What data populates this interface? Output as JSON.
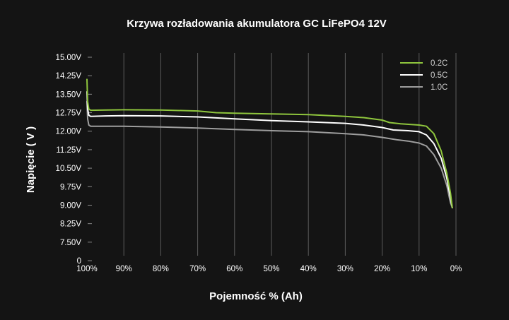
{
  "chart_data": {
    "type": "line",
    "title": "Krzywa rozładowania akumulatora GC LiFePO4 12V",
    "xlabel": "Pojemność % (Ah)",
    "ylabel": "Napięcie ( V )",
    "x_ticks": [
      "100%",
      "90%",
      "80%",
      "70%",
      "60%",
      "50%",
      "40%",
      "30%",
      "20%",
      "10%",
      "0%"
    ],
    "y_ticks": [
      "15.00V",
      "14.25V",
      "13.50V",
      "12.75V",
      "12.00V",
      "11.25V",
      "10.50V",
      "9.75V",
      "9.00V",
      "8.25V",
      "7.50V",
      "0"
    ],
    "x_range": [
      100,
      0
    ],
    "grid": "vertical",
    "legend_position": "top-right",
    "series": [
      {
        "name": "0.2C",
        "color": "#8fc63d",
        "points": [
          [
            100,
            14.1
          ],
          [
            99.8,
            13.2
          ],
          [
            99.5,
            12.9
          ],
          [
            99,
            12.85
          ],
          [
            95,
            12.86
          ],
          [
            90,
            12.87
          ],
          [
            80,
            12.86
          ],
          [
            70,
            12.82
          ],
          [
            65,
            12.75
          ],
          [
            60,
            12.73
          ],
          [
            50,
            12.7
          ],
          [
            40,
            12.67
          ],
          [
            30,
            12.6
          ],
          [
            25,
            12.55
          ],
          [
            20,
            12.45
          ],
          [
            18,
            12.35
          ],
          [
            15,
            12.3
          ],
          [
            10,
            12.25
          ],
          [
            8,
            12.2
          ],
          [
            6,
            11.9
          ],
          [
            4,
            11.2
          ],
          [
            2.5,
            10.3
          ],
          [
            1.5,
            9.5
          ],
          [
            1,
            8.9
          ]
        ]
      },
      {
        "name": "0.5C",
        "color": "#ffffff",
        "points": [
          [
            100,
            13.6
          ],
          [
            99.8,
            12.9
          ],
          [
            99.5,
            12.65
          ],
          [
            99,
            12.6
          ],
          [
            95,
            12.62
          ],
          [
            90,
            12.63
          ],
          [
            80,
            12.62
          ],
          [
            70,
            12.58
          ],
          [
            60,
            12.5
          ],
          [
            50,
            12.43
          ],
          [
            40,
            12.38
          ],
          [
            30,
            12.32
          ],
          [
            25,
            12.25
          ],
          [
            20,
            12.15
          ],
          [
            17,
            12.05
          ],
          [
            13,
            12.02
          ],
          [
            10,
            11.98
          ],
          [
            8,
            11.85
          ],
          [
            6,
            11.5
          ],
          [
            4,
            10.9
          ],
          [
            2.5,
            10.1
          ],
          [
            1.5,
            9.3
          ],
          [
            1,
            8.9
          ]
        ]
      },
      {
        "name": "1.0C",
        "color": "#9e9e9e",
        "points": [
          [
            100,
            13.2
          ],
          [
            99.8,
            12.5
          ],
          [
            99.5,
            12.25
          ],
          [
            99,
            12.2
          ],
          [
            95,
            12.2
          ],
          [
            90,
            12.2
          ],
          [
            80,
            12.17
          ],
          [
            70,
            12.13
          ],
          [
            60,
            12.07
          ],
          [
            50,
            12.02
          ],
          [
            40,
            11.98
          ],
          [
            30,
            11.9
          ],
          [
            25,
            11.85
          ],
          [
            20,
            11.75
          ],
          [
            16,
            11.65
          ],
          [
            13,
            11.6
          ],
          [
            10,
            11.52
          ],
          [
            8,
            11.4
          ],
          [
            6,
            11.05
          ],
          [
            4,
            10.5
          ],
          [
            2.5,
            9.8
          ],
          [
            1.5,
            9.1
          ],
          [
            1,
            8.9
          ]
        ]
      }
    ]
  }
}
